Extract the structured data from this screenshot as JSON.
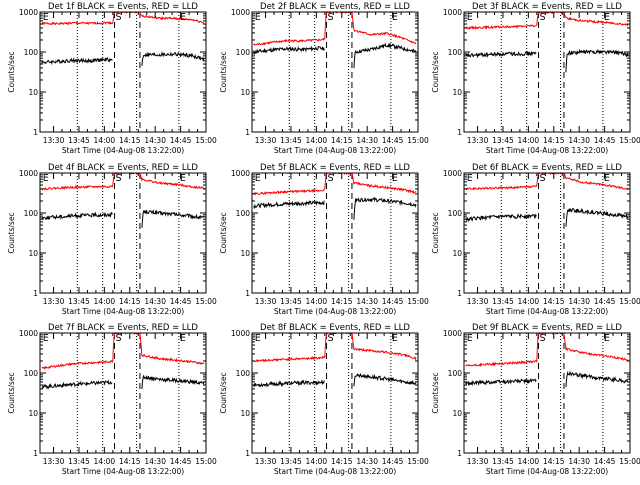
{
  "figure": {
    "background": "#ffffff",
    "axis_color": "#000000",
    "events_color": "#000000",
    "lld_color": "#ff0000",
    "shared_xlabel": "Start Time (04-Aug-08 13:22:00)",
    "shared_ylabel": "Counts/sec",
    "x_tick_labels": [
      "13:30",
      "13:45",
      "14:00",
      "14:15",
      "14:30",
      "14:45",
      "15:00"
    ],
    "y_tick_labels": [
      "1",
      "10",
      "100",
      "1000"
    ],
    "marker_labels": [
      "E",
      "S",
      "E"
    ],
    "rows": 3,
    "cols": 3
  },
  "chart_data": [
    {
      "type": "line",
      "title": "Det 1f BLACK = Events, RED = LLD",
      "xlabel": "Start Time (04-Aug-08 13:22:00)",
      "ylabel": "Counts/sec",
      "x_ticks": [
        "13:30",
        "13:45",
        "14:00",
        "14:15",
        "14:30",
        "14:45",
        "15:00"
      ],
      "y_ticks": [
        "1",
        "10",
        "100",
        "1000"
      ],
      "yscale": "log",
      "ylim": [
        1,
        1000
      ],
      "xlim_minutes_from_start": [
        0,
        98
      ],
      "dotted_lines_minutes": [
        22,
        37,
        57,
        82
      ],
      "dashed_lines_minutes": [
        44,
        59
      ],
      "markers": [
        {
          "label": "E",
          "x": 1
        },
        {
          "label": "S",
          "x": 44
        },
        {
          "label": "E",
          "x": 82
        }
      ],
      "series": [
        {
          "name": "LLD",
          "color": "#ff0000",
          "x": [
            1,
            10,
            20,
            30,
            40,
            43,
            44,
            59,
            60,
            70,
            80,
            90,
            97
          ],
          "values": [
            520,
            510,
            530,
            520,
            540,
            530,
            1000,
            1000,
            800,
            700,
            690,
            640,
            540
          ]
        },
        {
          "name": "Events",
          "color": "#000000",
          "x": [
            1,
            10,
            20,
            30,
            40,
            43,
            60,
            61,
            70,
            80,
            90,
            97
          ],
          "values": [
            55,
            58,
            62,
            60,
            65,
            62,
            40,
            85,
            85,
            88,
            80,
            65
          ]
        }
      ]
    },
    {
      "type": "line",
      "title": "Det 2f BLACK = Events, RED = LLD",
      "xlabel": "Start Time (04-Aug-08 13:22:00)",
      "ylabel": "Counts/sec",
      "x_ticks": [
        "13:30",
        "13:45",
        "14:00",
        "14:15",
        "14:30",
        "14:45",
        "15:00"
      ],
      "y_ticks": [
        "1",
        "10",
        "100",
        "1000"
      ],
      "yscale": "log",
      "ylim": [
        1,
        1000
      ],
      "xlim_minutes_from_start": [
        0,
        98
      ],
      "dotted_lines_minutes": [
        22,
        37,
        57,
        82
      ],
      "dashed_lines_minutes": [
        44,
        59
      ],
      "markers": [
        {
          "label": "E",
          "x": 1
        },
        {
          "label": "S",
          "x": 44
        },
        {
          "label": "E",
          "x": 82
        }
      ],
      "series": [
        {
          "name": "LLD",
          "color": "#ff0000",
          "x": [
            1,
            10,
            20,
            30,
            40,
            43,
            44,
            59,
            60,
            70,
            80,
            90,
            97
          ],
          "values": [
            150,
            170,
            190,
            190,
            200,
            210,
            1000,
            1000,
            350,
            270,
            290,
            210,
            160
          ]
        },
        {
          "name": "Events",
          "color": "#000000",
          "x": [
            1,
            10,
            20,
            30,
            40,
            43,
            60,
            61,
            70,
            80,
            90,
            97
          ],
          "values": [
            100,
            110,
            120,
            115,
            125,
            120,
            30,
            100,
            115,
            150,
            120,
            100
          ]
        }
      ]
    },
    {
      "type": "line",
      "title": "Det 3f BLACK = Events, RED = LLD",
      "xlabel": "Start Time (04-Aug-08 13:22:00)",
      "ylabel": "Counts/sec",
      "x_ticks": [
        "13:30",
        "13:45",
        "14:00",
        "14:15",
        "14:30",
        "14:45",
        "15:00"
      ],
      "y_ticks": [
        "1",
        "10",
        "100",
        "1000"
      ],
      "yscale": "log",
      "ylim": [
        1,
        1000
      ],
      "xlim_minutes_from_start": [
        0,
        98
      ],
      "dotted_lines_minutes": [
        22,
        37,
        57,
        82
      ],
      "dashed_lines_minutes": [
        44,
        59
      ],
      "markers": [
        {
          "label": "E",
          "x": 1
        },
        {
          "label": "S",
          "x": 44
        },
        {
          "label": "E",
          "x": 82
        }
      ],
      "series": [
        {
          "name": "LLD",
          "color": "#ff0000",
          "x": [
            1,
            10,
            20,
            30,
            40,
            43,
            44,
            59,
            60,
            70,
            80,
            90,
            97
          ],
          "values": [
            400,
            410,
            420,
            430,
            450,
            460,
            1000,
            1000,
            700,
            600,
            560,
            520,
            480
          ]
        },
        {
          "name": "Events",
          "color": "#000000",
          "x": [
            1,
            10,
            20,
            30,
            40,
            43,
            60,
            61,
            70,
            80,
            90,
            97
          ],
          "values": [
            80,
            85,
            88,
            90,
            92,
            90,
            20,
            95,
            100,
            102,
            98,
            85
          ]
        }
      ]
    },
    {
      "type": "line",
      "title": "Det 4f BLACK = Events, RED = LLD",
      "xlabel": "Start Time (04-Aug-08 13:22:00)",
      "ylabel": "Counts/sec",
      "x_ticks": [
        "13:30",
        "13:45",
        "14:00",
        "14:15",
        "14:30",
        "14:45",
        "15:00"
      ],
      "y_ticks": [
        "1",
        "10",
        "100",
        "1000"
      ],
      "yscale": "log",
      "ylim": [
        1,
        1000
      ],
      "xlim_minutes_from_start": [
        0,
        98
      ],
      "dotted_lines_minutes": [
        22,
        37,
        57,
        82
      ],
      "dashed_lines_minutes": [
        44,
        59
      ],
      "markers": [
        {
          "label": "E",
          "x": 1
        },
        {
          "label": "S",
          "x": 44
        },
        {
          "label": "E",
          "x": 82
        }
      ],
      "series": [
        {
          "name": "LLD",
          "color": "#ff0000",
          "x": [
            1,
            10,
            20,
            30,
            40,
            43,
            44,
            59,
            60,
            70,
            80,
            90,
            97
          ],
          "values": [
            400,
            420,
            440,
            450,
            460,
            470,
            1000,
            1000,
            700,
            560,
            520,
            450,
            420
          ]
        },
        {
          "name": "Events",
          "color": "#000000",
          "x": [
            1,
            10,
            20,
            30,
            40,
            43,
            60,
            61,
            70,
            80,
            90,
            97
          ],
          "values": [
            75,
            80,
            85,
            88,
            90,
            95,
            30,
            110,
            100,
            92,
            82,
            75
          ]
        }
      ]
    },
    {
      "type": "line",
      "title": "Det 5f BLACK = Events, RED = LLD",
      "xlabel": "Start Time (04-Aug-08 13:22:00)",
      "ylabel": "Counts/sec",
      "x_ticks": [
        "13:30",
        "13:45",
        "14:00",
        "14:15",
        "14:30",
        "14:45",
        "15:00"
      ],
      "y_ticks": [
        "1",
        "10",
        "100",
        "1000"
      ],
      "yscale": "log",
      "ylim": [
        1,
        1000
      ],
      "xlim_minutes_from_start": [
        0,
        98
      ],
      "dotted_lines_minutes": [
        22,
        37,
        57,
        82
      ],
      "dashed_lines_minutes": [
        44,
        59
      ],
      "markers": [
        {
          "label": "E",
          "x": 1
        },
        {
          "label": "S",
          "x": 44
        },
        {
          "label": "E",
          "x": 82
        }
      ],
      "series": [
        {
          "name": "LLD",
          "color": "#ff0000",
          "x": [
            1,
            10,
            20,
            30,
            40,
            43,
            44,
            59,
            60,
            70,
            80,
            90,
            97
          ],
          "values": [
            300,
            320,
            340,
            350,
            360,
            380,
            1000,
            1000,
            560,
            480,
            430,
            380,
            320
          ]
        },
        {
          "name": "Events",
          "color": "#000000",
          "x": [
            1,
            10,
            20,
            30,
            40,
            43,
            60,
            61,
            70,
            80,
            90,
            97
          ],
          "values": [
            150,
            160,
            170,
            175,
            180,
            185,
            40,
            210,
            220,
            200,
            180,
            160
          ]
        }
      ]
    },
    {
      "type": "line",
      "title": "Det 6f BLACK = Events, RED = LLD",
      "xlabel": "Start Time (04-Aug-08 13:22:00)",
      "ylabel": "Counts/sec",
      "x_ticks": [
        "13:30",
        "13:45",
        "14:00",
        "14:15",
        "14:30",
        "14:45",
        "15:00"
      ],
      "y_ticks": [
        "1",
        "10",
        "100",
        "1000"
      ],
      "yscale": "log",
      "ylim": [
        1,
        1000
      ],
      "xlim_minutes_from_start": [
        0,
        98
      ],
      "dotted_lines_minutes": [
        22,
        37,
        57,
        82
      ],
      "dashed_lines_minutes": [
        44,
        59
      ],
      "markers": [
        {
          "label": "E",
          "x": 1
        },
        {
          "label": "S",
          "x": 44
        },
        {
          "label": "E",
          "x": 82
        }
      ],
      "series": [
        {
          "name": "LLD",
          "color": "#ff0000",
          "x": [
            1,
            10,
            20,
            30,
            40,
            43,
            44,
            59,
            60,
            70,
            80,
            90,
            97
          ],
          "values": [
            400,
            410,
            420,
            430,
            450,
            470,
            1000,
            1000,
            760,
            580,
            530,
            450,
            400
          ]
        },
        {
          "name": "Events",
          "color": "#000000",
          "x": [
            1,
            10,
            20,
            30,
            40,
            43,
            60,
            61,
            70,
            80,
            90,
            97
          ],
          "values": [
            70,
            75,
            80,
            82,
            85,
            88,
            30,
            120,
            110,
            100,
            90,
            80
          ]
        }
      ]
    },
    {
      "type": "line",
      "title": "Det 7f BLACK = Events, RED = LLD",
      "xlabel": "Start Time (04-Aug-08 13:22:00)",
      "ylabel": "Counts/sec",
      "x_ticks": [
        "13:30",
        "13:45",
        "14:00",
        "14:15",
        "14:30",
        "14:45",
        "15:00"
      ],
      "y_ticks": [
        "1",
        "10",
        "100",
        "1000"
      ],
      "yscale": "log",
      "ylim": [
        1,
        1000
      ],
      "xlim_minutes_from_start": [
        0,
        98
      ],
      "dotted_lines_minutes": [
        22,
        37,
        57,
        82
      ],
      "dashed_lines_minutes": [
        44,
        59
      ],
      "markers": [
        {
          "label": "E",
          "x": 1
        },
        {
          "label": "S",
          "x": 44
        },
        {
          "label": "E",
          "x": 82
        }
      ],
      "series": [
        {
          "name": "LLD",
          "color": "#ff0000",
          "x": [
            1,
            10,
            20,
            30,
            40,
            43,
            44,
            59,
            60,
            70,
            80,
            90,
            97
          ],
          "values": [
            130,
            150,
            170,
            180,
            190,
            200,
            1000,
            1000,
            280,
            230,
            210,
            190,
            170
          ]
        },
        {
          "name": "Events",
          "color": "#000000",
          "x": [
            1,
            10,
            20,
            30,
            40,
            43,
            60,
            61,
            70,
            80,
            90,
            97
          ],
          "values": [
            45,
            48,
            52,
            55,
            58,
            60,
            30,
            80,
            70,
            65,
            60,
            55
          ]
        }
      ]
    },
    {
      "type": "line",
      "title": "Det 8f BLACK = Events, RED = LLD",
      "xlabel": "Start Time (04-Aug-08 13:22:00)",
      "ylabel": "Counts/sec",
      "x_ticks": [
        "13:30",
        "13:45",
        "14:00",
        "14:15",
        "14:30",
        "14:45",
        "15:00"
      ],
      "y_ticks": [
        "1",
        "10",
        "100",
        "1000"
      ],
      "yscale": "log",
      "ylim": [
        1,
        1000
      ],
      "xlim_minutes_from_start": [
        0,
        98
      ],
      "dotted_lines_minutes": [
        22,
        37,
        57,
        82
      ],
      "dashed_lines_minutes": [
        44,
        59
      ],
      "markers": [
        {
          "label": "E",
          "x": 1
        },
        {
          "label": "S",
          "x": 44
        },
        {
          "label": "E",
          "x": 82
        }
      ],
      "series": [
        {
          "name": "LLD",
          "color": "#ff0000",
          "x": [
            1,
            10,
            20,
            30,
            40,
            43,
            44,
            59,
            60,
            70,
            80,
            90,
            97
          ],
          "values": [
            200,
            210,
            220,
            230,
            240,
            250,
            1000,
            1000,
            400,
            360,
            330,
            280,
            230
          ]
        },
        {
          "name": "Events",
          "color": "#000000",
          "x": [
            1,
            10,
            20,
            30,
            40,
            43,
            60,
            61,
            70,
            80,
            90,
            97
          ],
          "values": [
            50,
            52,
            55,
            57,
            58,
            60,
            35,
            90,
            80,
            70,
            60,
            55
          ]
        }
      ]
    },
    {
      "type": "line",
      "title": "Det 9f BLACK = Events, RED = LLD",
      "xlabel": "Start Time (04-Aug-08 13:22:00)",
      "ylabel": "Counts/sec",
      "x_ticks": [
        "13:30",
        "13:45",
        "14:00",
        "14:15",
        "14:30",
        "14:45",
        "15:00"
      ],
      "y_ticks": [
        "1",
        "10",
        "100",
        "1000"
      ],
      "yscale": "log",
      "ylim": [
        1,
        1000
      ],
      "xlim_minutes_from_start": [
        0,
        98
      ],
      "dotted_lines_minutes": [
        22,
        37,
        57,
        82
      ],
      "dashed_lines_minutes": [
        44,
        59
      ],
      "markers": [
        {
          "label": "E",
          "x": 1
        },
        {
          "label": "S",
          "x": 44
        },
        {
          "label": "E",
          "x": 82
        }
      ],
      "series": [
        {
          "name": "LLD",
          "color": "#ff0000",
          "x": [
            1,
            10,
            20,
            30,
            40,
            43,
            44,
            59,
            60,
            70,
            80,
            90,
            97
          ],
          "values": [
            150,
            160,
            170,
            180,
            190,
            200,
            1000,
            1000,
            400,
            320,
            280,
            240,
            210
          ]
        },
        {
          "name": "Events",
          "color": "#000000",
          "x": [
            1,
            10,
            20,
            30,
            40,
            43,
            60,
            61,
            70,
            80,
            90,
            97
          ],
          "values": [
            55,
            58,
            60,
            62,
            64,
            66,
            30,
            100,
            85,
            75,
            68,
            60
          ]
        }
      ]
    }
  ]
}
